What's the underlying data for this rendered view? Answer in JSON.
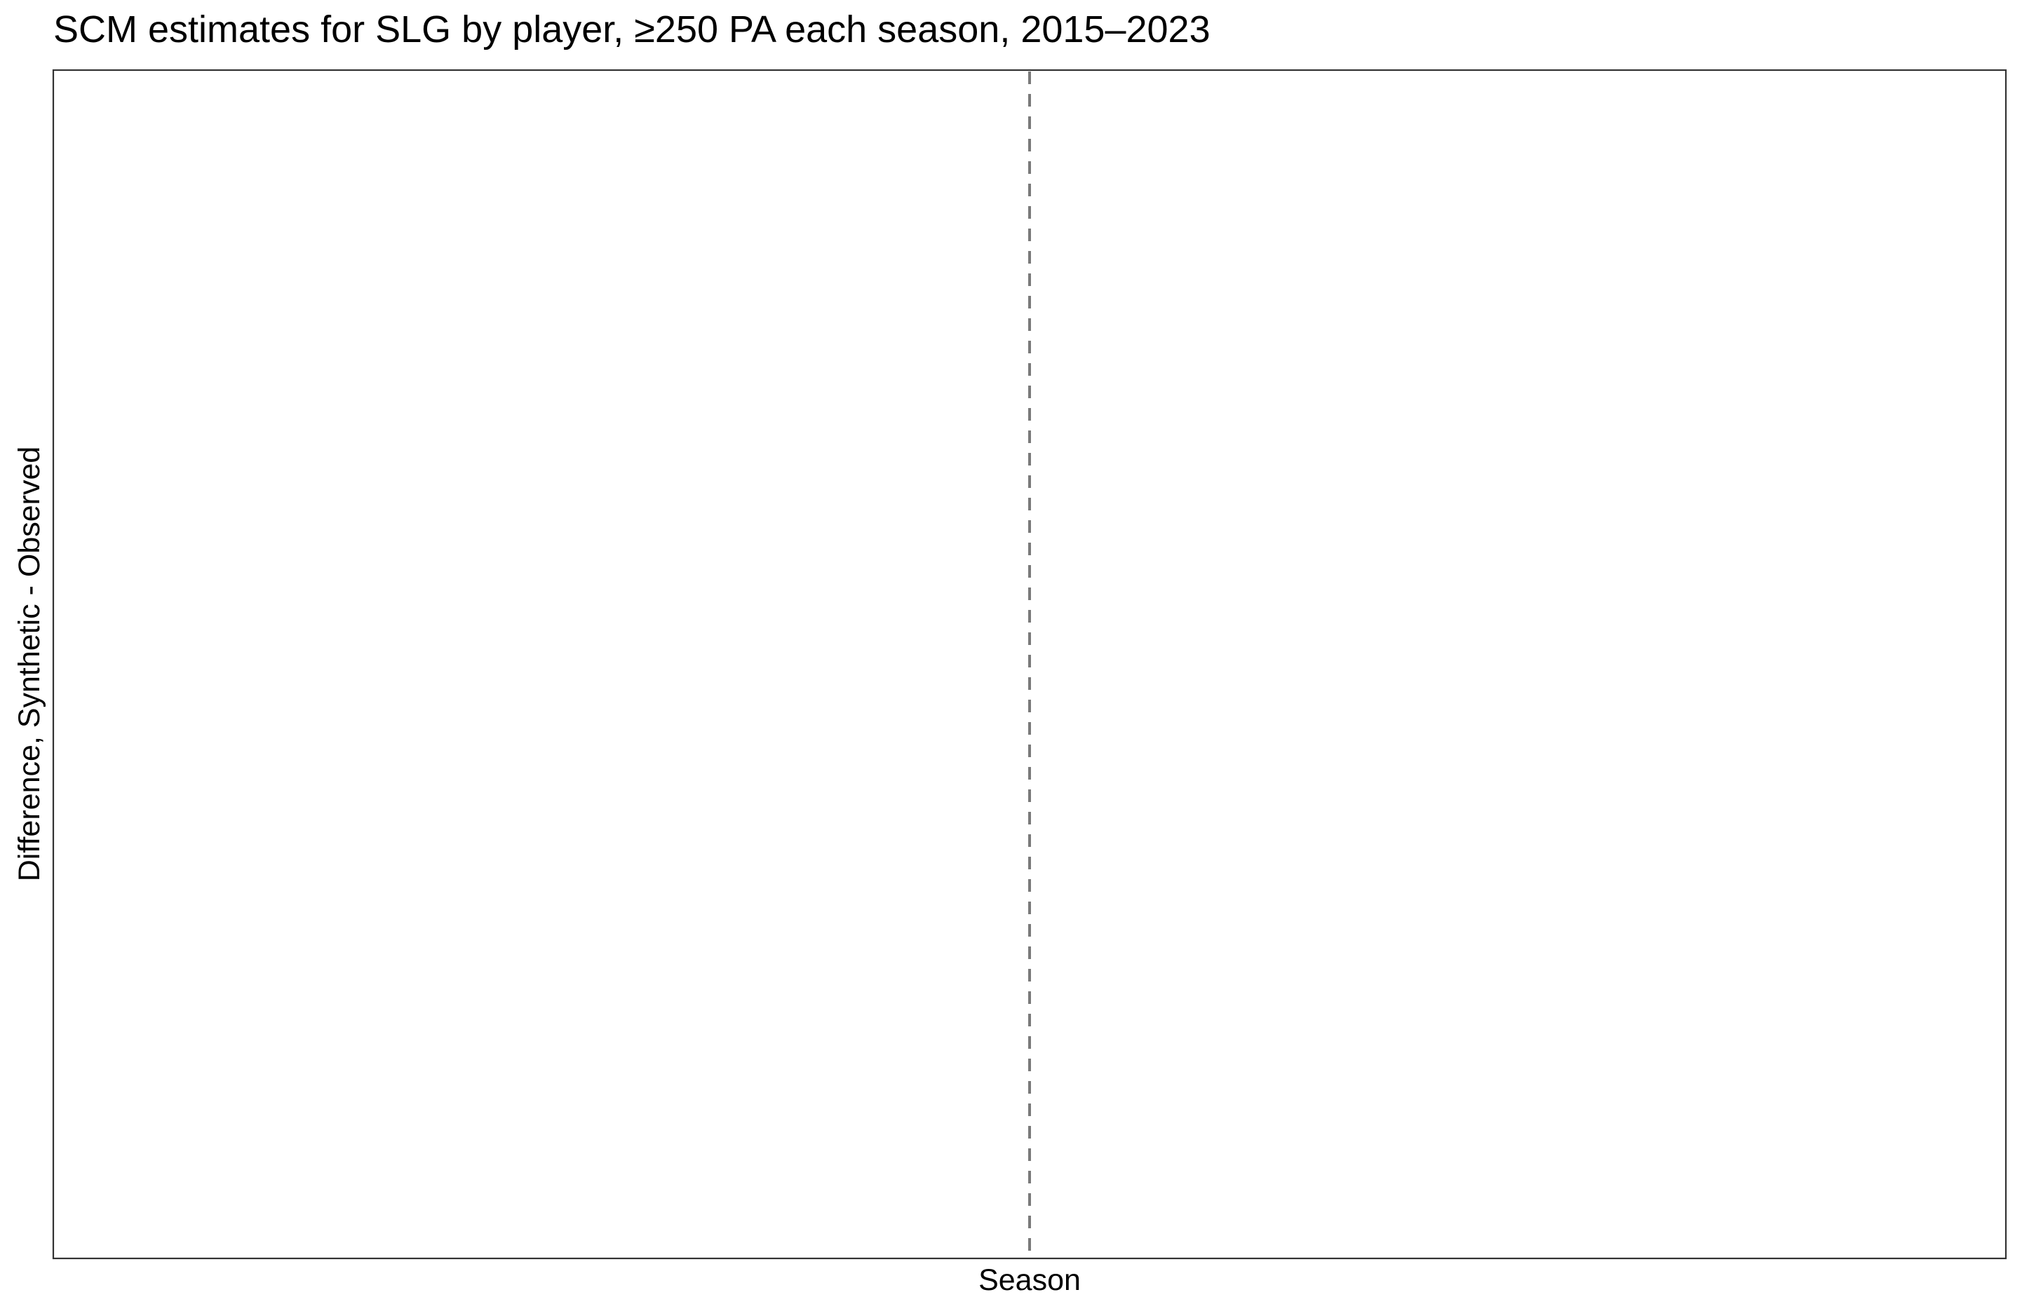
{
  "chart_data": {
    "type": "line",
    "title": "SCM estimates for SLG by player, ≥250 PA each season, 2015–2023",
    "xlabel": "Season",
    "ylabel": "Difference, Synthetic - Observed",
    "series": [],
    "grid": false,
    "legend": "none",
    "reference_line": {
      "orientation": "vertical",
      "style": "dashed",
      "color": "#7a7a7a"
    },
    "panel_border_color": "#333333"
  }
}
